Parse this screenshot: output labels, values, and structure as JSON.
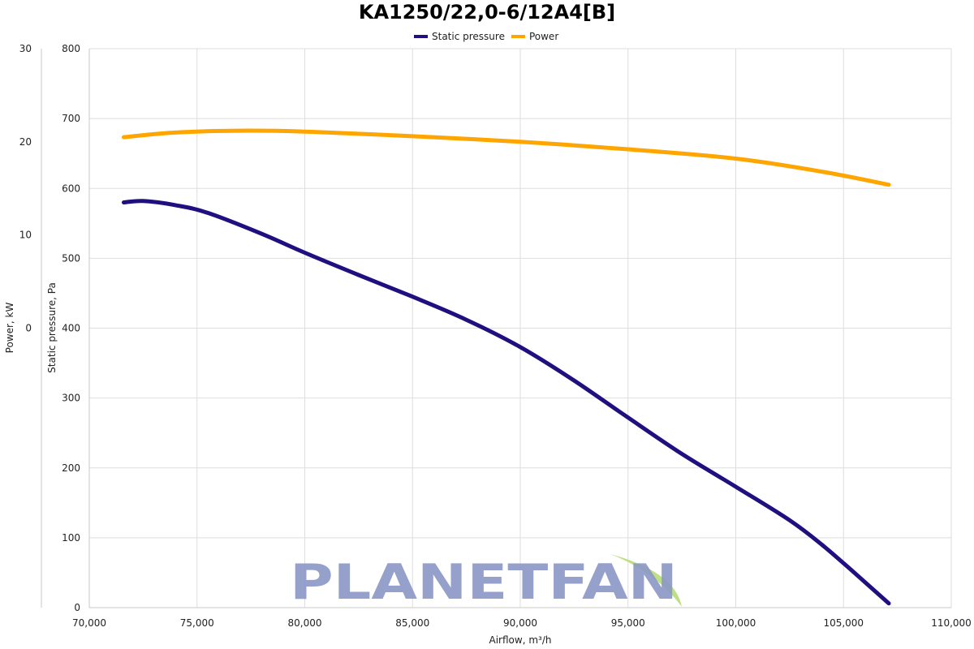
{
  "chart_data": {
    "type": "line",
    "title": "KA1250/22,0-6/12A4[B]",
    "xlabel": "Airflow, m³/h",
    "ylabel": "Static pressure, Pa",
    "y2label": "Power, kW",
    "xlim": [
      70000,
      110000
    ],
    "ylim": [
      0,
      800
    ],
    "y2lim": [
      -30,
      30
    ],
    "x_ticks": [
      "70,000",
      "75,000",
      "80,000",
      "85,000",
      "90,000",
      "95,000",
      "100,000",
      "105,000",
      "110,000"
    ],
    "y_ticks": [
      "0",
      "100",
      "200",
      "300",
      "400",
      "500",
      "600",
      "700",
      "800"
    ],
    "y2_ticks": [
      "0",
      "10",
      "20",
      "30"
    ],
    "grid": true,
    "legend_position": "top-center",
    "series": [
      {
        "name": "Static pressure",
        "axis": "left",
        "color": "#1f0f7f",
        "x": [
          71600,
          72500,
          74000,
          75500,
          78000,
          80000,
          82500,
          85000,
          87500,
          90000,
          92500,
          95000,
          97500,
          100000,
          102500,
          104000,
          105500,
          107100
        ],
        "y": [
          580,
          582,
          576,
          565,
          535,
          508,
          476,
          445,
          412,
          373,
          325,
          272,
          220,
          173,
          125,
          90,
          50,
          6
        ]
      },
      {
        "name": "Power",
        "axis": "right",
        "color": "#ffa500",
        "x": [
          71600,
          74000,
          77000,
          80000,
          85000,
          90000,
          95000,
          100000,
          104000,
          107100
        ],
        "y": [
          20.5,
          21.0,
          21.2,
          21.1,
          20.6,
          20.0,
          19.2,
          18.2,
          16.8,
          15.4
        ]
      }
    ]
  },
  "watermark": {
    "text": "PLANETFAN",
    "color": "#8b97c6",
    "accent": "#b8dc7a"
  }
}
